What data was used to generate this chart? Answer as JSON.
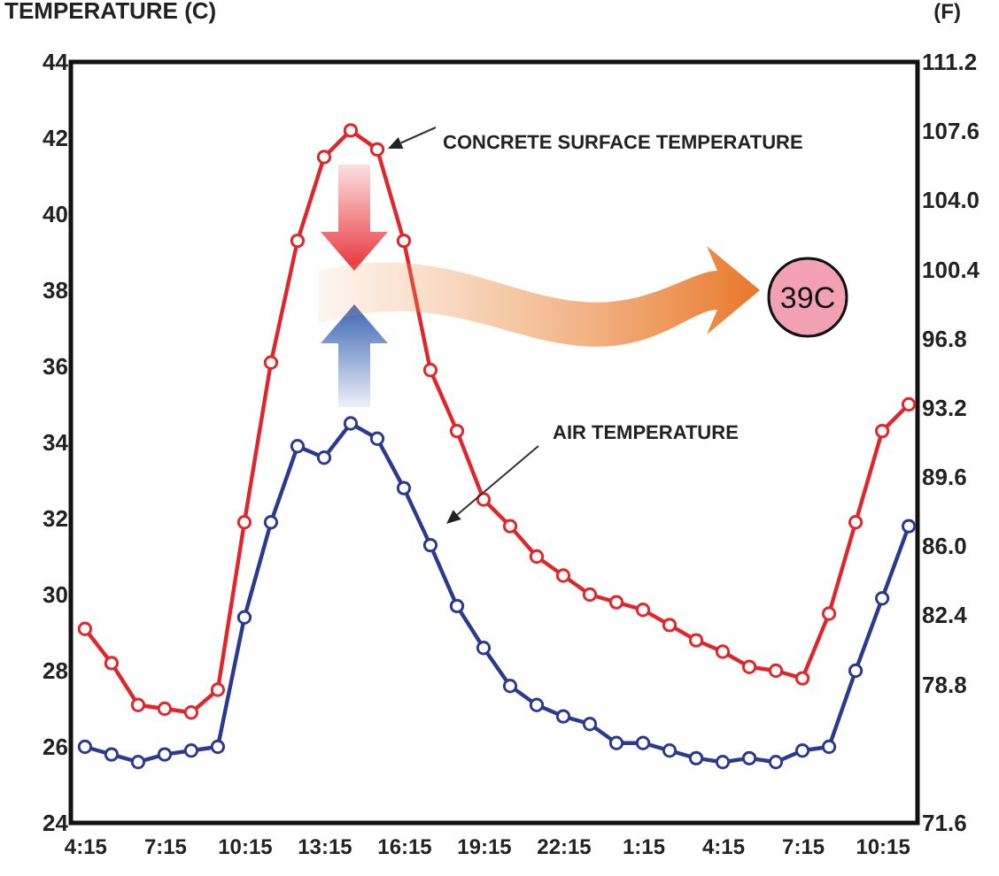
{
  "chart_data": {
    "type": "line",
    "ylabel": "TEMPERATURE (C)",
    "y2label": "(F)",
    "categories": [
      "4:15",
      null,
      null,
      "7:15",
      null,
      null,
      "10:15",
      null,
      null,
      "13:15",
      null,
      null,
      "16:15",
      null,
      null,
      "19:15",
      null,
      null,
      "22:15",
      null,
      null,
      "1:15",
      null,
      null,
      "4:15",
      null,
      null,
      "7:15",
      null,
      null,
      "10:15",
      null
    ],
    "series": [
      {
        "color": "#e0262b",
        "values": [
          29.1,
          28.2,
          27.1,
          27.0,
          26.9,
          27.5,
          31.9,
          36.1,
          39.3,
          41.5,
          42.2,
          41.7,
          39.3,
          35.9,
          34.3,
          32.5,
          31.8,
          31.0,
          30.5,
          30.0,
          29.8,
          29.6,
          29.2,
          28.8,
          28.5,
          28.1,
          28.0,
          27.8,
          29.5,
          31.9,
          34.3,
          35.0
        ]
      },
      {
        "color": "#2b3a8f",
        "values": [
          26.0,
          25.8,
          25.6,
          25.8,
          25.9,
          26.0,
          29.4,
          31.9,
          33.9,
          33.6,
          34.5,
          34.1,
          32.8,
          31.3,
          29.7,
          28.6,
          27.6,
          27.1,
          26.8,
          26.6,
          26.1,
          26.1,
          25.9,
          25.7,
          25.6,
          25.7,
          25.6,
          25.9,
          26.0,
          28.0,
          29.9,
          31.8
        ]
      }
    ],
    "ylim": [
      24,
      44
    ],
    "yticks": [
      24,
      26,
      28,
      30,
      32,
      34,
      36,
      38,
      40,
      42,
      44
    ],
    "y2lim": [
      71.6,
      111.2
    ],
    "y2ticks": [
      71.6,
      78.8,
      82.4,
      {
        "value": 86,
        "label": "86.0"
      },
      89.6,
      93.2,
      96.8,
      100.4,
      {
        "value": 104,
        "label": "104.0"
      },
      107.6,
      111.2
    ],
    "annotations": [
      "CONCRETE SURFACE TEMPERATURE",
      "AIR TEMPERATURE",
      "39C"
    ],
    "grid": false,
    "marker": "circle",
    "line_style": "solid"
  }
}
